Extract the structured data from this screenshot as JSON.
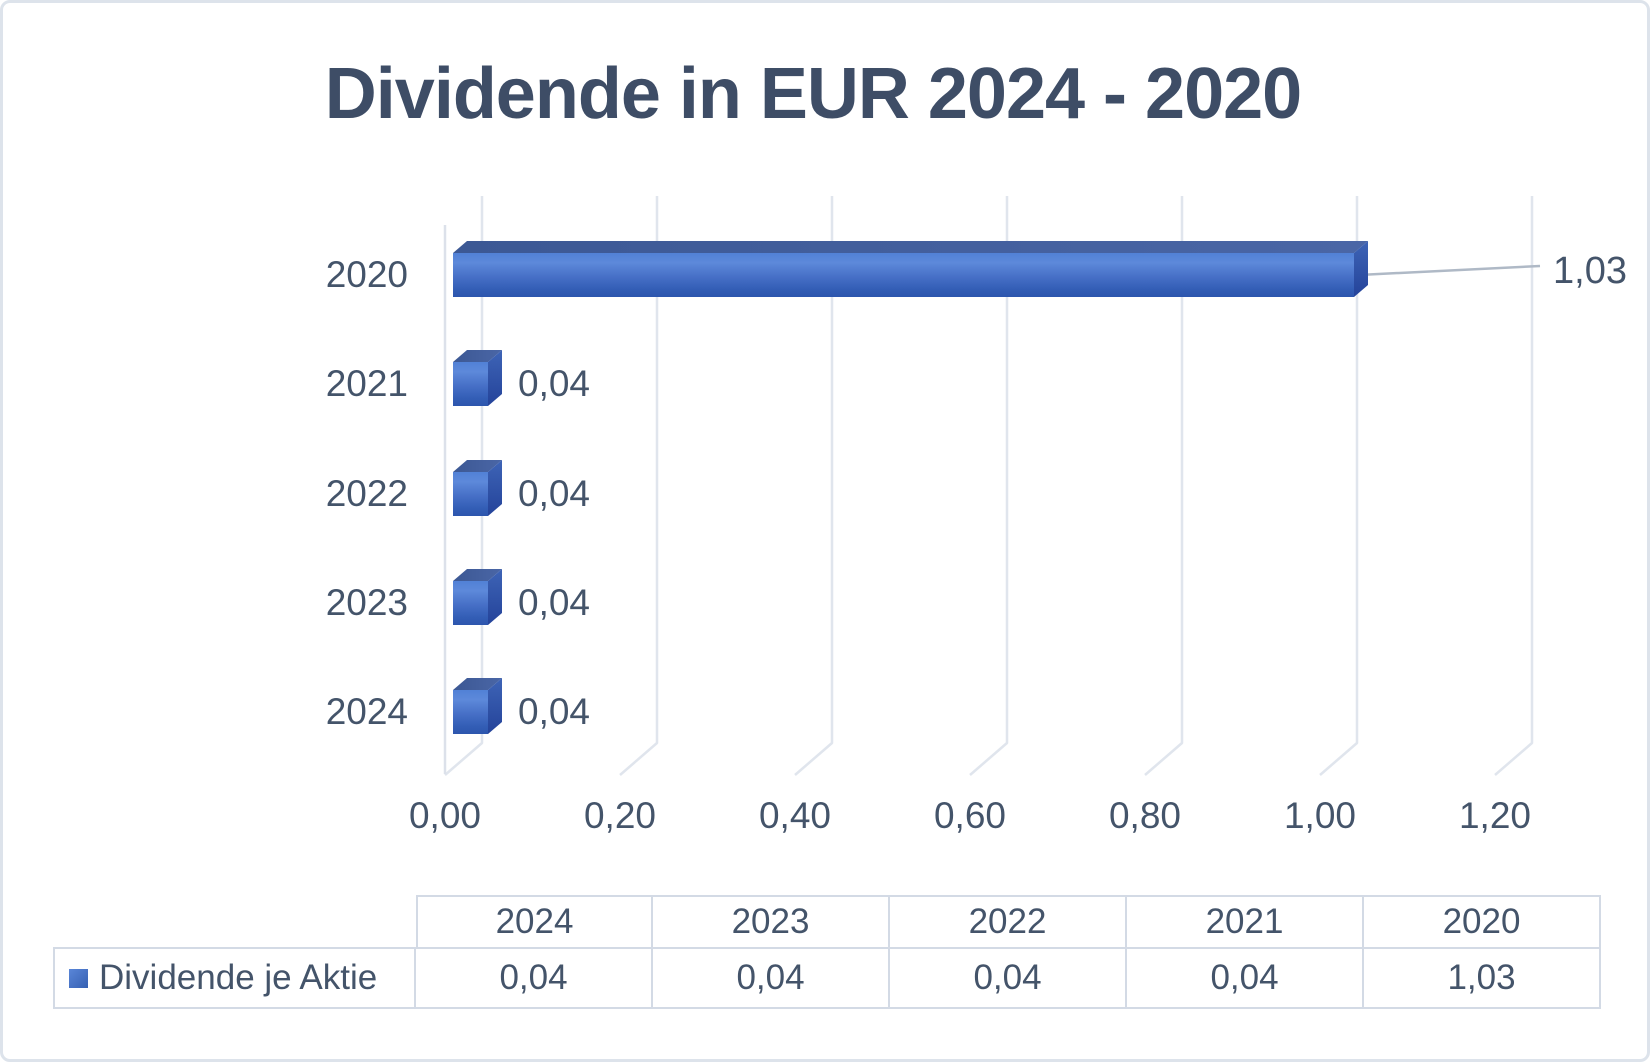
{
  "chart_data": {
    "type": "bar",
    "orientation": "horizontal",
    "effect": "3d",
    "title": "Dividende in EUR 2024 - 2020",
    "categories": [
      "2020",
      "2021",
      "2022",
      "2023",
      "2024"
    ],
    "series": [
      {
        "name": "Dividende je Aktie",
        "values": [
          1.03,
          0.04,
          0.04,
          0.04,
          0.04
        ],
        "color": "#4472C4"
      }
    ],
    "data_labels": [
      "1,03",
      "0,04",
      "0,04",
      "0,04",
      "0,04"
    ],
    "x_axis": {
      "range": [
        0,
        1.2
      ],
      "tick_interval": 0.2,
      "tick_labels": [
        "0,00",
        "0,20",
        "0,40",
        "0,60",
        "0,80",
        "1,00",
        "1,20"
      ]
    },
    "grid": true,
    "colors": {
      "bar": "#4472C4",
      "text": "#44546A",
      "title_text": "#3E4D66",
      "gridline": "#E0E5ED",
      "leader_line": "#AFB9C6",
      "table_border": "#D3DAE5",
      "frame_border": "#DDE3EB"
    }
  },
  "table": {
    "header": [
      "2024",
      "2023",
      "2022",
      "2021",
      "2020"
    ],
    "rows": [
      {
        "label": "Dividende je Aktie",
        "legend_swatch_color": "#4472C4",
        "values": [
          "0,04",
          "0,04",
          "0,04",
          "0,04",
          "1,03"
        ]
      }
    ]
  }
}
